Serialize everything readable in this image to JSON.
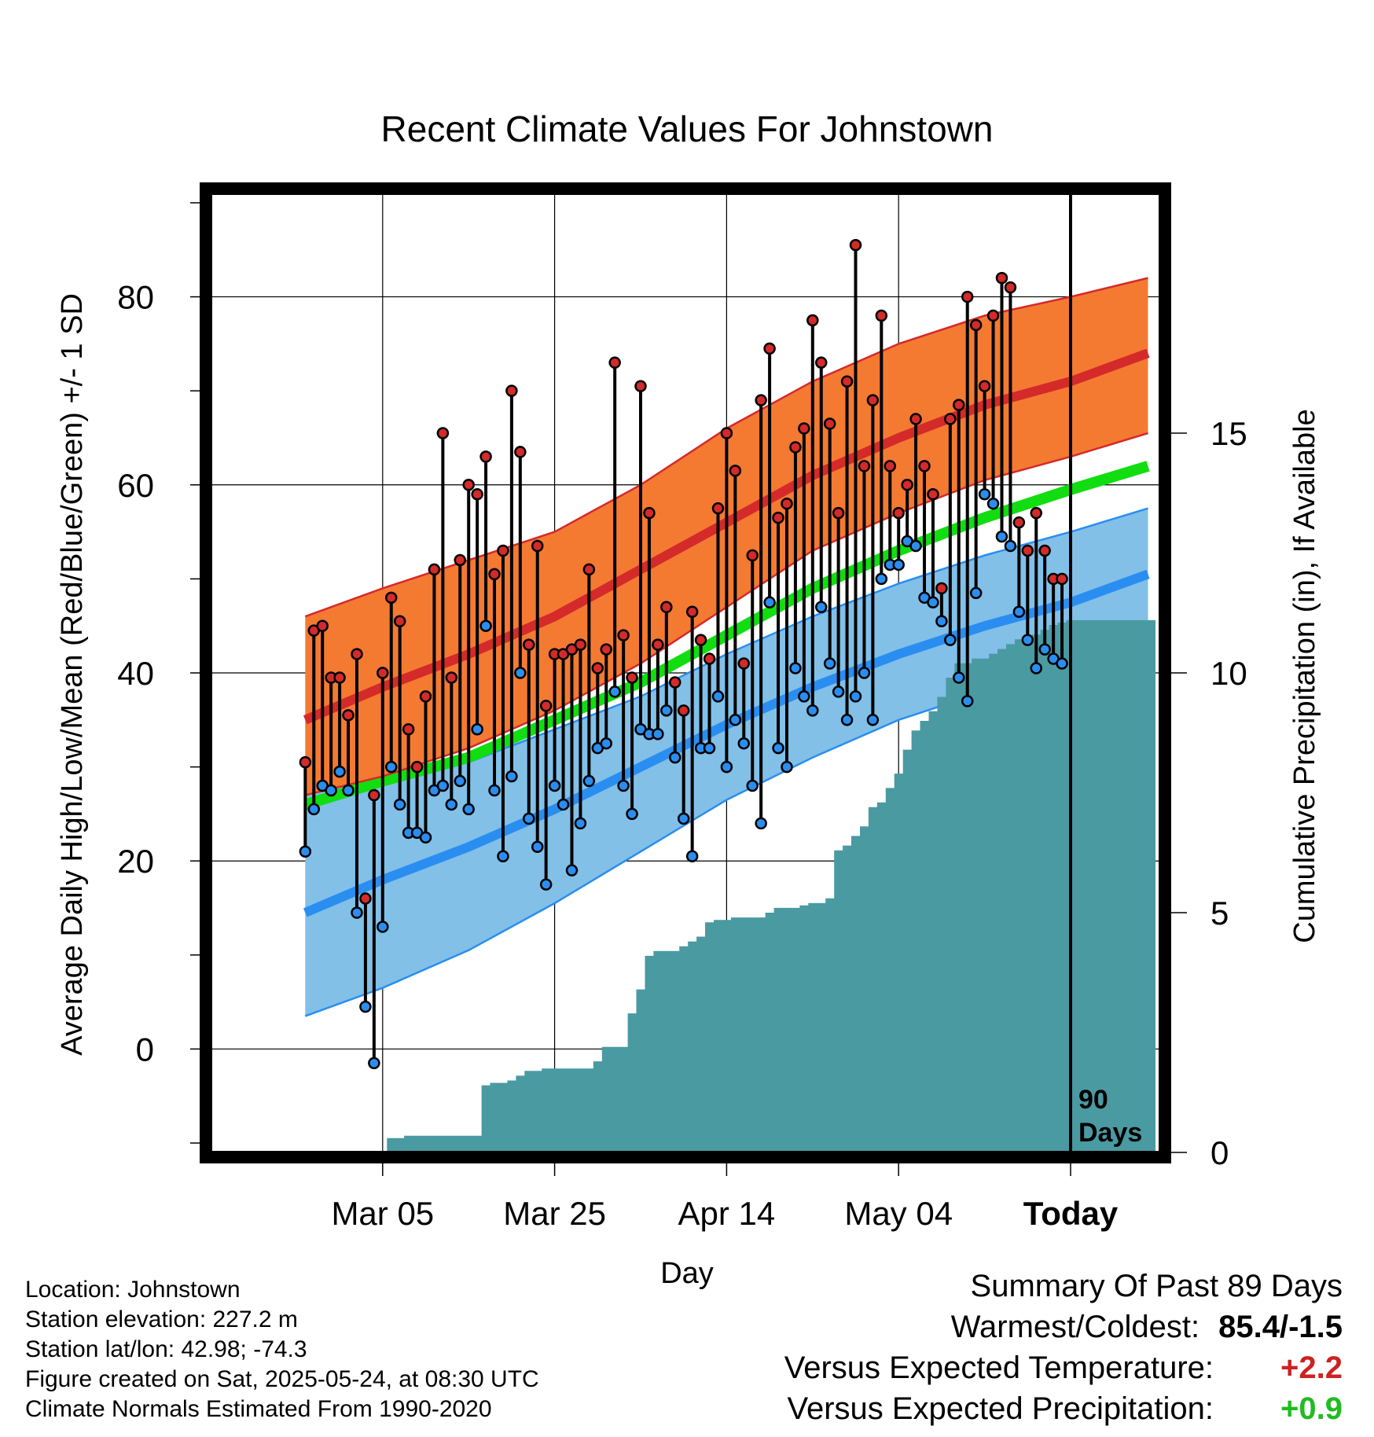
{
  "chart_data": {
    "type": "line",
    "title": "Recent Climate Values For Johnstown",
    "xlabel": "Day",
    "ylabel": "Average Daily High/Low/Mean (Red/Blue/Green) +/- 1 SD",
    "y2label": "Cumulative Precipitation (in), If Available",
    "ylim": [
      -11,
      91
    ],
    "yticks": [
      0,
      20,
      40,
      60,
      80
    ],
    "y2lim": [
      0,
      20
    ],
    "y2ticks": [
      0,
      5,
      10,
      15
    ],
    "xlim": [
      -100,
      0
    ],
    "xticks": [
      {
        "day": -80,
        "label": "Mar 05"
      },
      {
        "day": -60,
        "label": "Mar 25"
      },
      {
        "day": -40,
        "label": "Apr 14"
      },
      {
        "day": -20,
        "label": "May 04"
      },
      {
        "day": 0,
        "label": "Today"
      }
    ],
    "today_marker": {
      "day": 0,
      "label_line1": "90",
      "label_line2": "Days"
    },
    "grid": true,
    "colors": {
      "high_band": "#f47a32",
      "high_mean": "#d42a2a",
      "low_band": "#82c0e8",
      "low_mean": "#2a8ef0",
      "daily_mean": "#11dd11",
      "precip": "#4a9aa2",
      "high_point": "#d42a2a",
      "low_point": "#2a8ef0"
    },
    "normals": {
      "days": [
        -89,
        -80,
        -70,
        -60,
        -50,
        -40,
        -30,
        -20,
        -10,
        0,
        9
      ],
      "high_upper": [
        46,
        49,
        52,
        55,
        60,
        66,
        71,
        75,
        78,
        80,
        82
      ],
      "high_mean": [
        35,
        38.5,
        42,
        46,
        51,
        56,
        61,
        65,
        68.5,
        71,
        74
      ],
      "high_lower": [
        27,
        29,
        32,
        36,
        41,
        47,
        53,
        57,
        60.5,
        63,
        65.5
      ],
      "daily_mean": [
        26,
        28.5,
        31,
        35,
        39,
        44,
        49,
        53,
        56.5,
        59.5,
        62
      ],
      "low_upper": [
        27,
        29,
        30.5,
        34,
        37.5,
        42,
        46,
        49.5,
        52.5,
        55,
        57.5
      ],
      "low_mean": [
        14.5,
        18,
        21.5,
        25.5,
        30,
        34.5,
        38.5,
        42,
        45,
        47.5,
        50.5
      ],
      "low_lower": [
        3.5,
        6.5,
        10.5,
        15.5,
        21,
        26.5,
        31,
        35,
        38,
        41,
        44
      ]
    },
    "series": [
      {
        "name": "High",
        "values": [
          30.5,
          44.5,
          45,
          39.5,
          39.5,
          35.5,
          42,
          16,
          27,
          40,
          48,
          45.5,
          34,
          30,
          37.5,
          51,
          65.5,
          39.5,
          52,
          60,
          59,
          63,
          50.5,
          53,
          70,
          63.5,
          43,
          53.5,
          36.5,
          42,
          42,
          42.5,
          43,
          51,
          40.5,
          42.5,
          73,
          44,
          39.5,
          70.5,
          57,
          43,
          47,
          39,
          36,
          46.5,
          43.5,
          41.5,
          57.5,
          65.5,
          61.5,
          41,
          52.5,
          69,
          74.5,
          56.5,
          58,
          64,
          66,
          77.5,
          73,
          66.5,
          57,
          71,
          85.5,
          62,
          69,
          78,
          62,
          57,
          60,
          67,
          62,
          59,
          49,
          67,
          68.5,
          80,
          77,
          70.5,
          78,
          82,
          81,
          56,
          53,
          57,
          53,
          50,
          50
        ]
      },
      {
        "name": "Low",
        "values": [
          21,
          25.5,
          28,
          27.5,
          29.5,
          27.5,
          14.5,
          4.5,
          -1.5,
          13,
          30,
          26,
          23,
          23,
          22.5,
          27.5,
          28,
          26,
          28.5,
          25.5,
          34,
          45,
          27.5,
          20.5,
          29,
          40,
          24.5,
          21.5,
          17.5,
          28,
          26,
          19,
          24,
          28.5,
          32,
          32.5,
          38,
          28,
          25,
          34,
          33.5,
          33.5,
          36,
          31,
          24.5,
          20.5,
          32,
          32,
          37.5,
          30,
          35,
          32.5,
          28,
          24,
          47.5,
          32,
          30,
          40.5,
          37.5,
          36,
          47,
          41,
          38,
          35,
          37.5,
          40,
          35,
          50,
          51.5,
          51.5,
          54,
          53.5,
          48,
          47.5,
          45.5,
          43.5,
          39.5,
          37,
          48.5,
          59,
          58,
          54.5,
          53.5,
          46.5,
          43.5,
          40.5,
          42.5,
          41.5,
          41
        ]
      },
      {
        "name": "Cumulative Precipitation",
        "values": [
          0,
          0,
          0,
          0,
          0,
          0,
          0,
          0,
          0,
          0,
          0.3,
          0.3,
          0.35,
          0.35,
          0.35,
          0.35,
          0.35,
          0.35,
          0.35,
          0.35,
          0.35,
          1.4,
          1.45,
          1.45,
          1.5,
          1.6,
          1.7,
          1.7,
          1.75,
          1.75,
          1.75,
          1.75,
          1.75,
          1.75,
          1.9,
          2.2,
          2.2,
          2.2,
          2.9,
          3.4,
          4.1,
          4.2,
          4.2,
          4.2,
          4.3,
          4.4,
          4.5,
          4.8,
          4.85,
          4.85,
          4.9,
          4.9,
          4.9,
          4.9,
          5.0,
          5.1,
          5.1,
          5.1,
          5.15,
          5.2,
          5.2,
          5.3,
          6.3,
          6.4,
          6.6,
          6.8,
          7.2,
          7.3,
          7.6,
          7.9,
          8.4,
          8.8,
          9.0,
          9.2,
          9.5,
          9.9,
          10.2,
          10.2,
          10.3,
          10.3,
          10.4,
          10.5,
          10.6,
          10.7,
          10.75,
          10.8,
          10.9,
          11.0,
          11.05,
          11.1
        ]
      }
    ]
  },
  "footer_info": {
    "location": "Location: Johnstown",
    "elevation": "Station elevation: 227.2 m",
    "latlon": "Station lat/lon: 42.98; -74.3",
    "created": "Figure created on Sat, 2025-05-24, at 08:30 UTC",
    "normals": "Climate Normals Estimated From 1990-2020"
  },
  "summary": {
    "heading": "Summary Of Past 89 Days",
    "warm_cold_label": "Warmest/Coldest:",
    "warm_cold_value": "85.4/-1.5",
    "temp_label": "Versus Expected Temperature:",
    "temp_value": "+2.2",
    "precip_label": "Versus Expected Precipitation:",
    "precip_value": "+0.9"
  }
}
